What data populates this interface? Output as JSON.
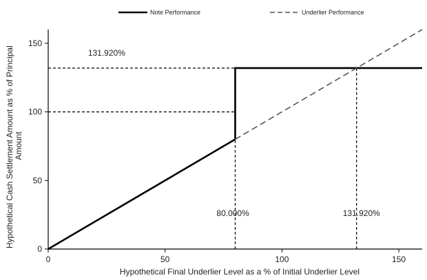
{
  "chart_data": {
    "type": "line",
    "title": "",
    "xlabel": "Hypothetical Final Underlier Level as a % of Initial Underlier Level",
    "ylabel": "Hypothetical Cash Settlement Amount as % of Principal Amount",
    "ylabel_lines": [
      "Hypothetical Cash Settlement Amount as % of Principal",
      "Amount"
    ],
    "xlim": [
      0,
      160
    ],
    "ylim": [
      0,
      160
    ],
    "x_ticks": [
      0,
      50,
      100,
      150
    ],
    "y_ticks": [
      0,
      50,
      100,
      150
    ],
    "grid": false,
    "legend_position": "top",
    "series": [
      {
        "name": "Note Performance",
        "style": "solid",
        "color": "#000000",
        "segments": [
          [
            [
              0,
              0
            ],
            [
              80,
              80
            ]
          ],
          [
            [
              80,
              80
            ],
            [
              80,
              131.92
            ],
            [
              160,
              131.92
            ]
          ]
        ]
      },
      {
        "name": "Underlier Performance",
        "style": "dashed",
        "color": "#555555",
        "points": [
          [
            80,
            80
          ],
          [
            160,
            160
          ]
        ]
      }
    ],
    "reference_lines": [
      {
        "points": [
          [
            0,
            131.92
          ],
          [
            131.92,
            131.92
          ]
        ]
      },
      {
        "points": [
          [
            0,
            100
          ],
          [
            80,
            100
          ]
        ]
      },
      {
        "points": [
          [
            80,
            0
          ],
          [
            80,
            80
          ]
        ]
      },
      {
        "points": [
          [
            131.92,
            0
          ],
          [
            131.92,
            131.92
          ]
        ]
      }
    ],
    "annotations": [
      {
        "text": "131.920%",
        "x": 25,
        "y": 141
      },
      {
        "text": "80.000%",
        "x": 79,
        "y": 24
      },
      {
        "text": "131.920%",
        "x": 134,
        "y": 24
      }
    ]
  }
}
